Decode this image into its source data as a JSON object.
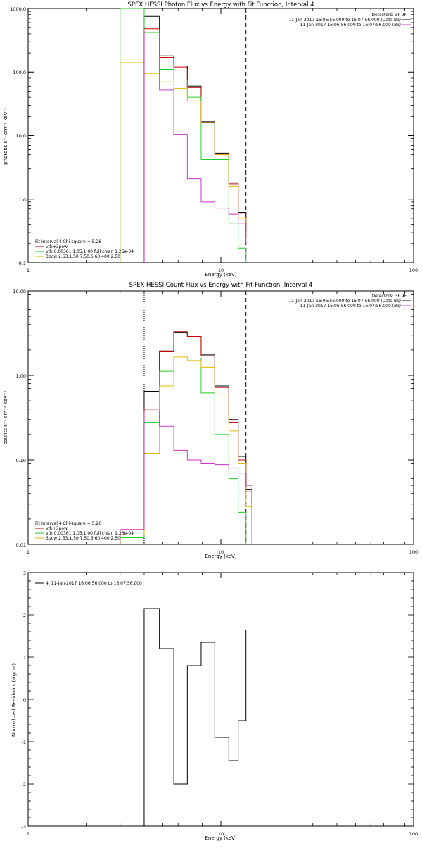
{
  "colors": {
    "data": "#000000",
    "total": "#cc0000",
    "vth": "#22cc22",
    "pow": "#e8b800",
    "bk": "#cc33cc"
  },
  "chart_data": [
    {
      "type": "line",
      "title": "SPEX HESSI Photon Flux vs Energy with Fit Function, Interval 4",
      "xlabel": "Energy (keV)",
      "ylabel": "photons s⁻¹ cm⁻² keV⁻¹",
      "xscale": "log",
      "yscale": "log",
      "xlim": [
        1,
        100
      ],
      "ylim": [
        0.1,
        1000
      ],
      "x_tick_labels": [
        "1",
        "10",
        "100"
      ],
      "y_tick_labels": [
        "0.1",
        "1.0",
        "10.0",
        "100.0",
        "1000.0"
      ],
      "legend_tr": {
        "header": "Detectors: 3F 9F",
        "lines": [
          {
            "text": "11-Jan-2017 16:06:56.000 to 16:07:56.000 (Data-Bk)",
            "color": "#000000"
          },
          {
            "text": "11-Jan-2017 16:06:56.000 to 16:07:56.000 (Bk)",
            "color": "#cc33cc"
          }
        ]
      },
      "legend_bl": {
        "header": "Fit Interval 4   Chi-square = 5.26",
        "lines": [
          {
            "text": "vth+3pow",
            "color": "#cc0000"
          },
          {
            "text": "vth 0.00361,1.05,1.00  full chian 1.26e-04",
            "color": "#22cc22"
          },
          {
            "text": "3pow 2.53,1.50,7.50,6.60,400,2.50",
            "color": "#e8b800"
          }
        ]
      },
      "lines": [
        {
          "x": 4.0,
          "style": "dotted",
          "color": "#cc33cc"
        },
        {
          "x": 13.5,
          "style": "dashed",
          "color": "#000000"
        }
      ],
      "edges": [
        3.0,
        4.0,
        4.8,
        5.7,
        6.7,
        7.9,
        9.3,
        11.0,
        12.3,
        13.5
      ],
      "series": [
        {
          "color": "#000000",
          "values": [
            null,
            750,
            180,
            125,
            60,
            16.5,
            5.3,
            1.85,
            0.62,
            0.3
          ]
        },
        {
          "color": "#cc0000",
          "values": [
            null,
            480,
            170,
            120,
            57,
            16,
            5.1,
            1.75,
            0.6,
            0.28
          ]
        },
        {
          "color": "#22cc22",
          "values": [
            1000,
            420,
            110,
            75,
            40,
            4.2,
            4.2,
            0.42,
            0.17,
            0.1
          ]
        },
        {
          "color": "#e8b800",
          "values": [
            140,
            95,
            70,
            55,
            35,
            16,
            5.0,
            1.6,
            0.5,
            0.25
          ]
        },
        {
          "color": "#cc33cc",
          "values": [
            null,
            460,
            52,
            10.5,
            2.1,
            0.9,
            0.72,
            0.58,
            0.42,
            0.2
          ]
        }
      ]
    },
    {
      "type": "line",
      "title": "SPEX HESSI Count Flux vs Energy with Fit Function, Interval 4",
      "xlabel": "Energy (keV)",
      "ylabel": "counts s⁻¹ cm⁻² keV⁻¹",
      "xscale": "log",
      "yscale": "log",
      "xlim": [
        1,
        100
      ],
      "ylim": [
        0.01,
        10
      ],
      "x_tick_labels": [
        "1",
        "10",
        "100"
      ],
      "y_tick_labels": [
        "0.01",
        "0.10",
        "1.00",
        "10.00"
      ],
      "legend_tr": {
        "header": "Detectors: 3F 9F",
        "lines": [
          {
            "text": "11-Jan-2017 16:06:56.000 to 16:07:56.000 (Data-Bk)",
            "color": "#000000"
          },
          {
            "text": "11-Jan-2017 16:06:56.000 to 16:07:56.000 (Bk)",
            "color": "#cc33cc"
          }
        ]
      },
      "legend_bl": {
        "header": "Fit Interval 4   Chi-square = 5.26",
        "lines": [
          {
            "text": "vth+3pow",
            "color": "#cc0000"
          },
          {
            "text": "vth 0.00361,1.05,1.00  full chian 1.26e-04",
            "color": "#22cc22"
          },
          {
            "text": "3pow 2.53,1.50,7.50,6.60,400,2.50",
            "color": "#e8b800"
          }
        ]
      },
      "lines": [
        {
          "x": 4.0,
          "style": "dotted",
          "color": "#000000"
        },
        {
          "x": 13.5,
          "style": "dashed",
          "color": "#000000"
        }
      ],
      "edges": [
        3.0,
        4.0,
        4.8,
        5.7,
        6.7,
        7.9,
        9.3,
        11.0,
        12.3,
        13.5,
        14.5
      ],
      "series": [
        {
          "color": "#000000",
          "values": [
            0.014,
            0.65,
            1.95,
            3.2,
            2.85,
            1.75,
            0.75,
            0.3,
            0.11,
            0.045,
            0.011
          ]
        },
        {
          "color": "#cc0000",
          "values": [
            0.015,
            0.4,
            1.9,
            3.3,
            2.9,
            1.7,
            0.72,
            0.28,
            0.1,
            0.042,
            0.011
          ]
        },
        {
          "color": "#22cc22",
          "values": [
            0.012,
            0.28,
            1.12,
            1.6,
            1.6,
            0.62,
            0.2,
            0.06,
            0.024,
            0.01,
            null
          ]
        },
        {
          "color": "#e8b800",
          "values": [
            0.013,
            0.12,
            0.75,
            1.65,
            1.5,
            1.25,
            0.6,
            0.22,
            0.09,
            0.028,
            null
          ]
        },
        {
          "color": "#cc33cc",
          "values": [
            0.015,
            0.38,
            0.25,
            0.13,
            0.1,
            0.09,
            0.088,
            0.08,
            0.07,
            0.05,
            null
          ]
        }
      ]
    },
    {
      "type": "line",
      "title": "",
      "xlabel": "Energy (keV)",
      "ylabel": "Normalized Residuals (sigma)",
      "xscale": "log",
      "yscale": "linear",
      "xlim": [
        1,
        100
      ],
      "ylim": [
        -3,
        3
      ],
      "x_tick_labels": [
        "1",
        "10",
        "100"
      ],
      "y_tick_labels": [
        "-3",
        "-2",
        "-1",
        "0",
        "1",
        "2",
        "3"
      ],
      "legend": {
        "text": "4, 11-Jan-2017 16:06:56.000 to 16:07:56.000",
        "color": "#000000"
      },
      "edges": [
        4.0,
        4.8,
        5.7,
        6.7,
        7.9,
        9.3,
        11.0,
        12.3,
        13.5
      ],
      "series": [
        {
          "color": "#000000",
          "values": [
            2.15,
            1.2,
            -2.0,
            0.8,
            1.35,
            -0.9,
            -1.45,
            -0.5,
            1.65
          ]
        }
      ]
    }
  ]
}
